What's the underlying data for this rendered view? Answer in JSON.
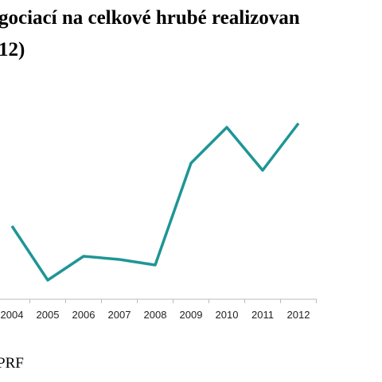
{
  "chart_data": {
    "type": "line",
    "title_lines": [
      "gociací na celkové hrubé realizovan",
      "12)"
    ],
    "categories": [
      "2004",
      "2005",
      "2006",
      "2007",
      "2008",
      "2009",
      "2010",
      "2011",
      "2012"
    ],
    "values": [
      92,
      24,
      54,
      50,
      43,
      171,
      216,
      162,
      221
    ],
    "color": "#1f9596",
    "source": "PRF"
  }
}
